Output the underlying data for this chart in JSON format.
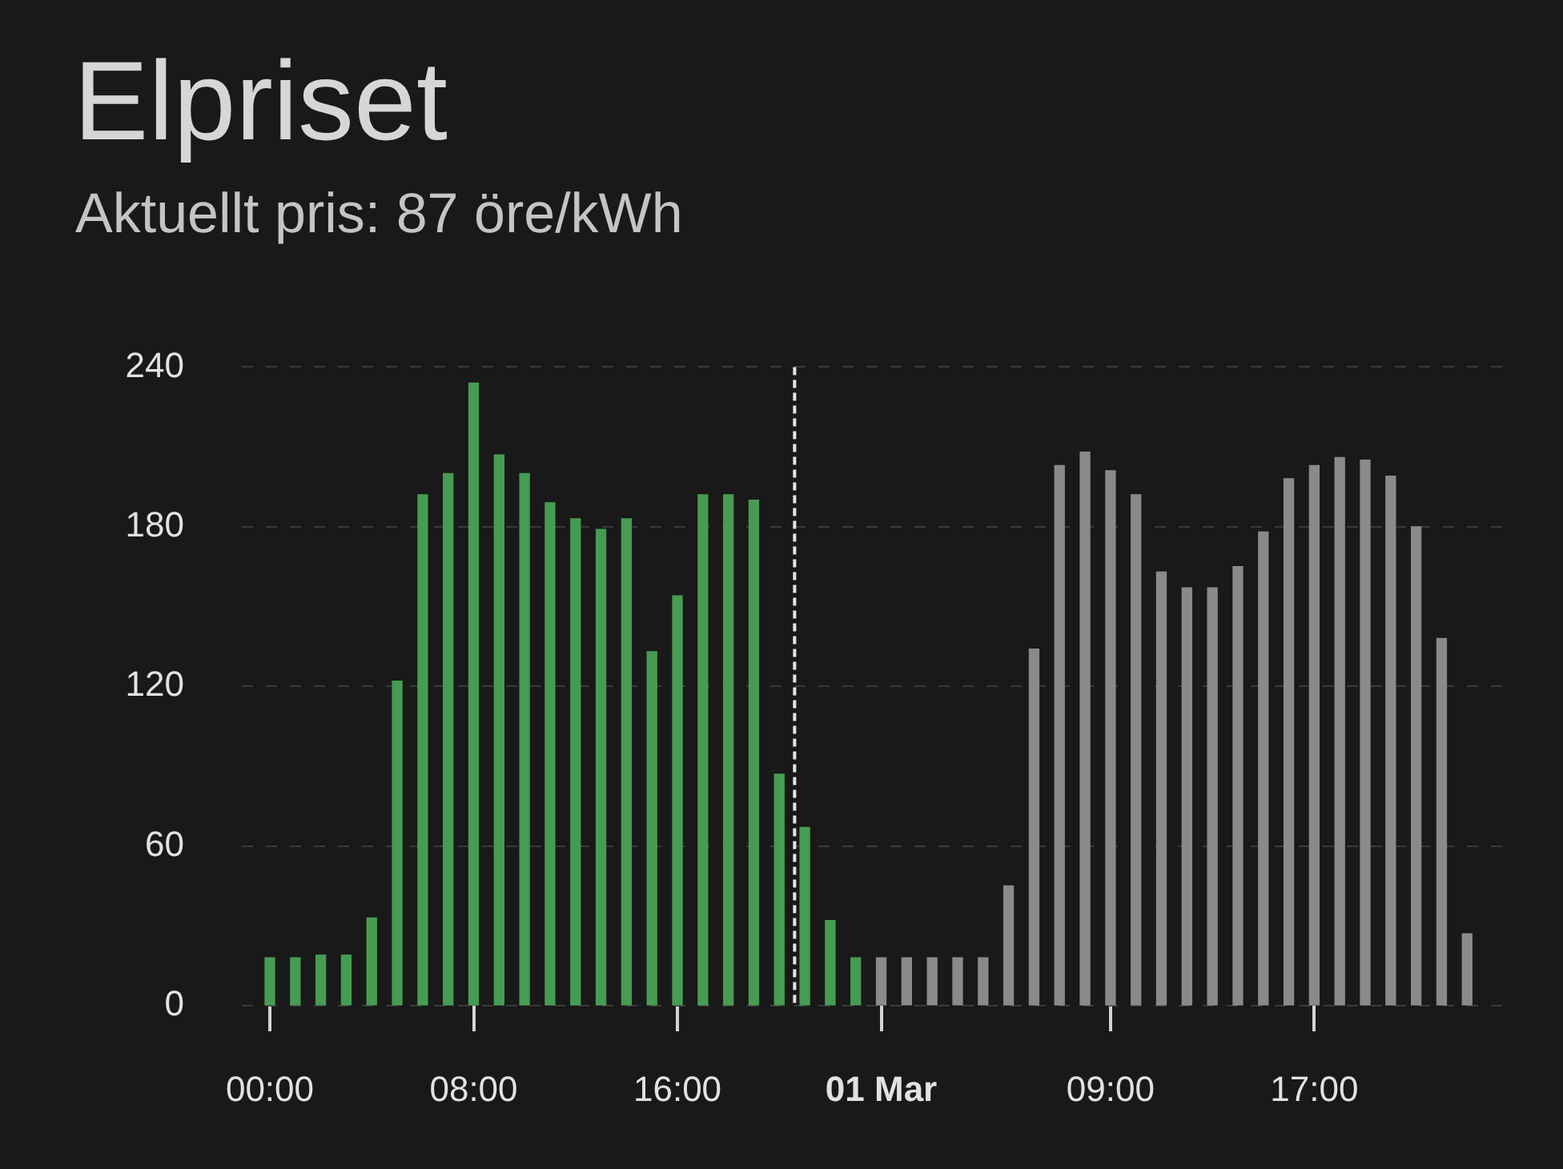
{
  "chart_data": {
    "type": "bar",
    "title": "Elpriset",
    "subtitle": "Aktuellt pris: 87 öre/kWh",
    "series": [
      {
        "color": "#469c52",
        "x": [
          "--02-28T00:00",
          "--02-28T01:00",
          "--02-28T02:00",
          "--02-28T03:00",
          "--02-28T04:00",
          "--02-28T05:00",
          "--02-28T06:00",
          "--02-28T07:00",
          "--02-28T08:00",
          "--02-28T09:00",
          "--02-28T10:00",
          "--02-28T11:00",
          "--02-28T12:00",
          "--02-28T13:00",
          "--02-28T14:00",
          "--02-28T15:00",
          "--02-28T16:00",
          "--02-28T17:00",
          "--02-28T18:00",
          "--02-28T19:00",
          "--02-28T20:00",
          "--02-28T21:00",
          "--02-28T22:00",
          "--02-28T23:00"
        ],
        "values": [
          18,
          18,
          19,
          19,
          33,
          122,
          192,
          200,
          234,
          207,
          200,
          189,
          183,
          179,
          183,
          133,
          154,
          192,
          192,
          190,
          87,
          67,
          32,
          18
        ]
      },
      {
        "color": "#8a8a8a",
        "x": [
          "--03-01T00:00",
          "--03-01T01:00",
          "--03-01T02:00",
          "--03-01T03:00",
          "--03-01T04:00",
          "--03-01T05:00",
          "--03-01T06:00",
          "--03-01T07:00",
          "--03-01T08:00",
          "--03-01T09:00",
          "--03-01T10:00",
          "--03-01T11:00",
          "--03-01T12:00",
          "--03-01T13:00",
          "--03-01T14:00",
          "--03-01T15:00",
          "--03-01T16:00",
          "--03-01T17:00",
          "--03-01T18:00",
          "--03-01T19:00",
          "--03-01T20:00",
          "--03-01T21:00",
          "--03-01T22:00",
          "--03-01T23:00"
        ],
        "values": [
          18,
          18,
          18,
          18,
          18,
          45,
          134,
          203,
          208,
          201,
          192,
          163,
          157,
          157,
          165,
          178,
          198,
          203,
          206,
          205,
          199,
          180,
          138,
          27
        ]
      }
    ],
    "xlim": [
      "--02-27T22:54",
      "--03-02T00:30"
    ],
    "xticks": [
      {
        "value": "--02-28T00:00",
        "label": "00:00"
      },
      {
        "value": "--02-28T08:00",
        "label": "08:00"
      },
      {
        "value": "--02-28T16:00",
        "label": "16:00"
      },
      {
        "value": "--03-01T00:00",
        "label": "01 Mar"
      },
      {
        "value": "--03-01T09:00",
        "label": "09:00"
      },
      {
        "value": "--03-01T17:00",
        "label": "17:00"
      }
    ],
    "ylim": [
      0,
      240
    ],
    "yticks": [
      0,
      60,
      120,
      180,
      240
    ],
    "grid": "y",
    "ref_lines": [
      {
        "axis": "x",
        "value": "--02-28T20:36",
        "color": "#e6e6e6",
        "line_style": "dashed"
      }
    ]
  }
}
